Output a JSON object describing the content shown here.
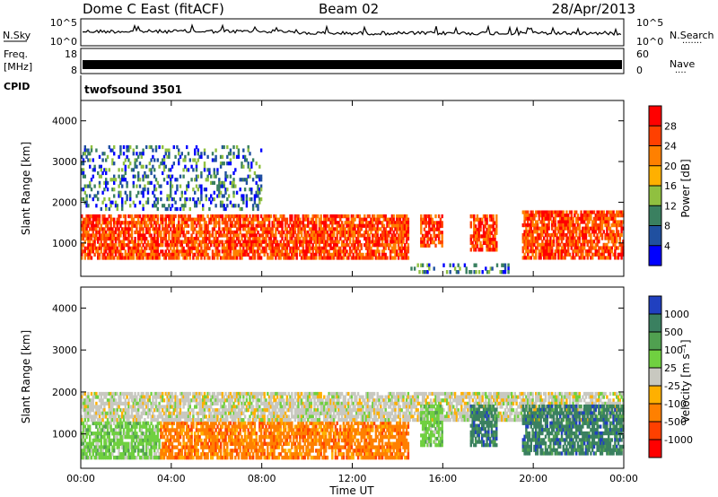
{
  "header": {
    "station": "Dome C East (fitACF)",
    "beam": "Beam 02",
    "date": "28/Apr/2013"
  },
  "nsky_strip": {
    "left_label": "N.Sky",
    "left_ticks": [
      "10^5",
      "10^0"
    ],
    "right_label": "N.Search",
    "right_ticks": [
      "10^5",
      "10^0"
    ]
  },
  "freq_strip": {
    "left_label_line1": "Freq.",
    "left_label_line2": "[MHz]",
    "left_ticks": [
      "18",
      "8"
    ],
    "right_label": "Nave",
    "right_ticks": [
      "60",
      "0"
    ]
  },
  "cpid": {
    "label": "CPID",
    "program": "twofsound 3501"
  },
  "chart_data": [
    {
      "type": "heatmap",
      "panel": "power",
      "ylabel": "Slant Range [km]",
      "yticks": [
        1000,
        2000,
        3000,
        4000
      ],
      "ylim": [
        180,
        4500
      ],
      "xlim": [
        0,
        24
      ],
      "x_tick_labels": [
        "00:00",
        "04:00",
        "08:00",
        "12:00",
        "16:00",
        "20:00",
        "00:00"
      ],
      "colorbar": {
        "label": "Power [dB]",
        "ticks": [
          "28",
          "24",
          "20",
          "16",
          "12",
          "8",
          "4"
        ],
        "colors": [
          "#ff0000",
          "#ff4000",
          "#ff8000",
          "#ffb000",
          "#90c040",
          "#3a8060",
          "#2050a0",
          "#0000ff"
        ]
      },
      "regions": [
        {
          "t0": 0.0,
          "t1": 14.5,
          "r0": 600,
          "r1": 1700,
          "level": "high"
        },
        {
          "t0": 15.0,
          "t1": 16.0,
          "r0": 900,
          "r1": 1700,
          "level": "high"
        },
        {
          "t0": 17.2,
          "t1": 18.4,
          "r0": 800,
          "r1": 1700,
          "level": "high"
        },
        {
          "t0": 19.5,
          "t1": 24.0,
          "r0": 600,
          "r1": 1800,
          "level": "high"
        },
        {
          "t0": 0.0,
          "t1": 8.0,
          "r0": 1800,
          "r1": 3400,
          "level": "low"
        },
        {
          "t0": 14.5,
          "t1": 19.0,
          "r0": 250,
          "r1": 500,
          "level": "low"
        }
      ]
    },
    {
      "type": "heatmap",
      "panel": "velocity",
      "ylabel": "Slant Range [km]",
      "yticks": [
        1000,
        2000,
        3000,
        4000
      ],
      "ylim": [
        180,
        4500
      ],
      "xlim": [
        0,
        24
      ],
      "xlabel": "Time UT",
      "x_tick_labels": [
        "00:00",
        "04:00",
        "08:00",
        "12:00",
        "16:00",
        "20:00",
        "00:00"
      ],
      "colorbar": {
        "label": "Velocity [m s⁻¹]",
        "ticks": [
          "1000",
          "500",
          "100",
          "25",
          "-25",
          "-100",
          "-500",
          "-1000"
        ],
        "colors": [
          "#2040c0",
          "#3a8060",
          "#50a050",
          "#70d040",
          "#c8c8c0",
          "#ffb000",
          "#ff8000",
          "#ff4000",
          "#ff0000"
        ]
      },
      "regions": [
        {
          "t0": 0.0,
          "t1": 3.5,
          "r0": 400,
          "r1": 1300,
          "vel": "100"
        },
        {
          "t0": 3.5,
          "t1": 14.5,
          "r0": 400,
          "r1": 1300,
          "vel": "-100"
        },
        {
          "t0": 0.0,
          "t1": 24.0,
          "r0": 1300,
          "r1": 2000,
          "vel": "25"
        },
        {
          "t0": 15.0,
          "t1": 16.0,
          "r0": 700,
          "r1": 1700,
          "vel": "100"
        },
        {
          "t0": 17.2,
          "t1": 18.4,
          "r0": 700,
          "r1": 1700,
          "vel": "500"
        },
        {
          "t0": 19.5,
          "t1": 24.0,
          "r0": 500,
          "r1": 1700,
          "vel": "500"
        }
      ]
    }
  ]
}
